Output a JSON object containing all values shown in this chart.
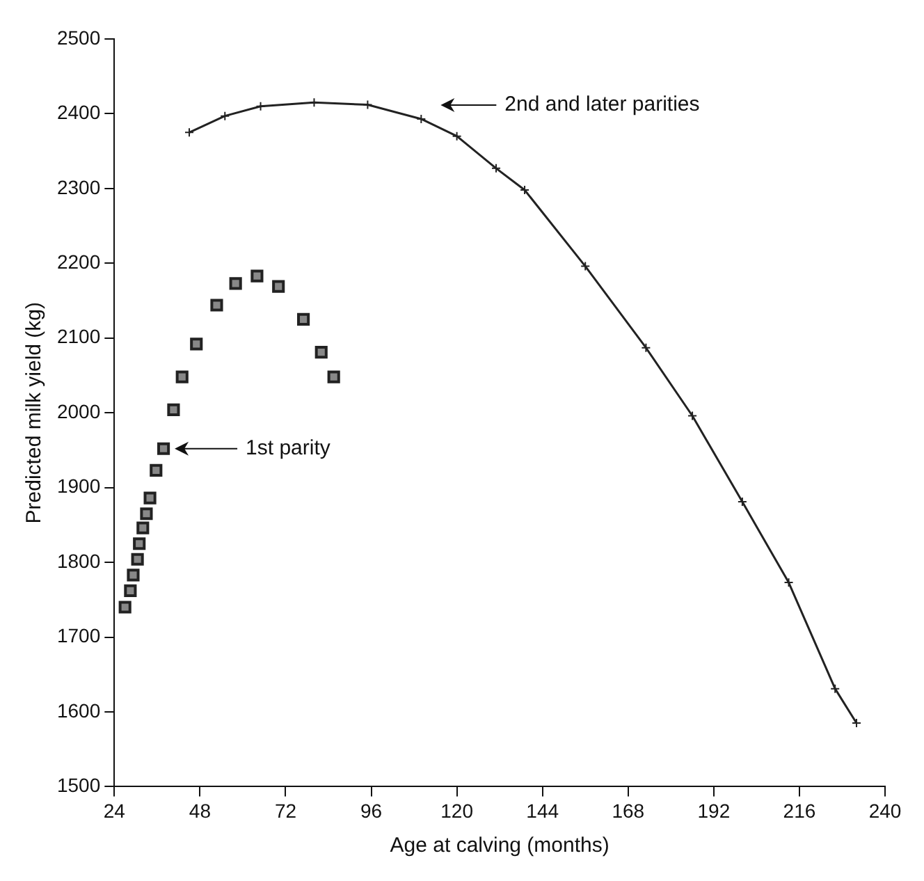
{
  "chart_data": {
    "type": "line",
    "xlabel": "Age at calving (months)",
    "ylabel": "Predicted milk yield (kg)",
    "xlim": [
      24,
      240
    ],
    "xticks": [
      24,
      48,
      72,
      96,
      120,
      144,
      168,
      192,
      216,
      240
    ],
    "ylim": [
      1500,
      2500
    ],
    "yticks": [
      1500,
      1600,
      1700,
      1800,
      1900,
      2000,
      2100,
      2200,
      2300,
      2400,
      2500
    ],
    "grid": false,
    "legend": false,
    "series": [
      {
        "type": "scatter",
        "marker": "square",
        "color": "#222222",
        "x": [
          27,
          28.5,
          29.3,
          30.5,
          31,
          32,
          33,
          34,
          35.7,
          37.8,
          40.6,
          43,
          47,
          52.7,
          58,
          64,
          70,
          77,
          82,
          85.5
        ],
        "values": [
          1740,
          1762,
          1783,
          1804,
          1825,
          1846,
          1865,
          1886,
          1923,
          1952,
          2004,
          2048,
          2092,
          2144,
          2173,
          2183,
          2169,
          2125,
          2081,
          2048
        ]
      },
      {
        "marker": "cross",
        "color": "#222222",
        "x": [
          45,
          55,
          65,
          80,
          95,
          110,
          120,
          131,
          139,
          156,
          173,
          186,
          200,
          213,
          226,
          232
        ],
        "values": [
          2375,
          2397,
          2410,
          2415,
          2412,
          2393,
          2370,
          2327,
          2298,
          2196,
          2087,
          1996,
          1881,
          1773,
          1631,
          1585
        ]
      }
    ],
    "annotations": [
      "1st parity",
      "2nd and later parities"
    ]
  }
}
